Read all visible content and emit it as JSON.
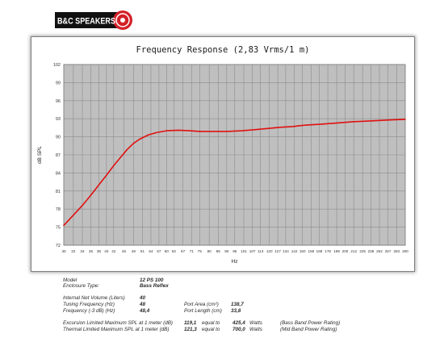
{
  "brand": {
    "logo_text": "B&C SPEAKERS",
    "colors": {
      "red": "#d32027",
      "black": "#111111"
    }
  },
  "chart_data": {
    "type": "line",
    "title": "Frequency Response (2,83 Vrms/1 m)",
    "xlabel": "Hz",
    "ylabel": "dB SPL",
    "x_scale": "log",
    "xlim": [
      30,
      300
    ],
    "ylim": [
      72,
      102
    ],
    "grid": true,
    "series_color": "#e01010",
    "plot_background": "#bfbfbf",
    "x_ticks": [
      30,
      32,
      34,
      36,
      38,
      40,
      42,
      45,
      48,
      51,
      54,
      57,
      60,
      63,
      67,
      71,
      75,
      80,
      85,
      90,
      95,
      101,
      107,
      113,
      120,
      127,
      134,
      142,
      150,
      159,
      168,
      178,
      189,
      200,
      212,
      225,
      238,
      252,
      267,
      283,
      300
    ],
    "y_ticks": [
      72,
      75,
      78,
      81,
      84,
      87,
      90,
      93,
      96,
      99,
      102
    ],
    "series": [
      {
        "x": [
          30,
          32,
          34,
          36,
          38,
          40,
          42,
          44,
          46,
          48,
          50,
          53,
          56,
          60,
          65,
          70,
          75,
          80,
          85,
          90,
          100,
          110,
          120,
          130,
          140,
          150,
          170,
          190,
          210,
          230,
          250,
          270,
          300
        ],
        "values": [
          75.3,
          77.0,
          78.6,
          80.3,
          82.0,
          83.6,
          85.2,
          86.6,
          87.9,
          88.9,
          89.6,
          90.3,
          90.7,
          91.0,
          91.1,
          91.0,
          90.9,
          90.9,
          90.9,
          90.9,
          91.0,
          91.2,
          91.4,
          91.6,
          91.7,
          91.9,
          92.1,
          92.3,
          92.5,
          92.6,
          92.7,
          92.8,
          92.9
        ]
      }
    ]
  },
  "specs": {
    "model": {
      "label": "Model",
      "value": "12 PS 100"
    },
    "enclosure": {
      "label": "Enclosure Type:",
      "value": "Bass Reflex"
    },
    "net_volume": {
      "label": "Internal  Net Volume (Liters)",
      "value": "40"
    },
    "tuning": {
      "label": "Tuning Frequency (Hz)",
      "value": "48"
    },
    "f3": {
      "label": "Frequency (-3 dB) (Hz)",
      "value": "48,4"
    },
    "port_area": {
      "label": "Port Area (cm²)",
      "value": "138,7"
    },
    "port_length": {
      "label": "Port Length (cm)",
      "value": "33,8"
    },
    "excursion": {
      "label": "Excursion Limited Maximum SPL at 1 meter (dB)",
      "value": "119,1",
      "equal": "equal to",
      "watts": "425,4",
      "unit": "Watts",
      "note": "(Bass Band Power Rating)"
    },
    "thermal": {
      "label": "Thermal Limited Maximum SPL at 1 meter (dB)",
      "value": "121,3",
      "equal": "equal to",
      "watts": "700,0",
      "unit": "Watts",
      "note": "(Mid Band Power Rating)"
    }
  }
}
